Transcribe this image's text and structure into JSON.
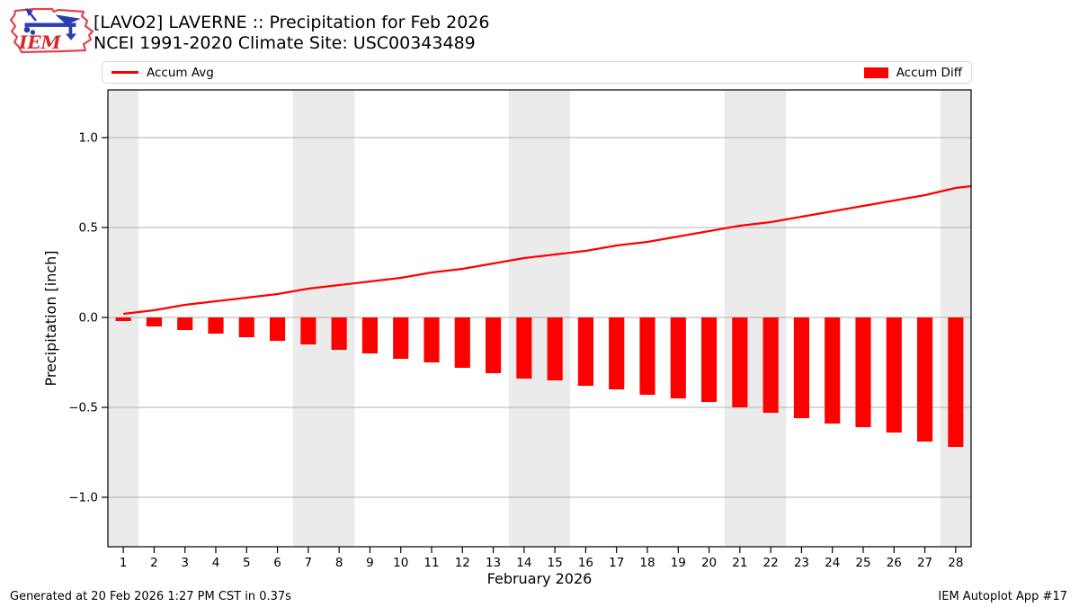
{
  "header": {
    "title_line1": "[LAVO2] LAVERNE :: Precipitation for Feb 2026",
    "title_line2": "NCEI 1991-2020 Climate Site: USC00343489",
    "logo_text": "IEM"
  },
  "legend": {
    "avg_label": "Accum Avg",
    "diff_label": "Accum Diff",
    "series_color": "#ff0000"
  },
  "footer": {
    "left": "Generated at 20 Feb 2026 1:27 PM CST in 0.37s",
    "right": "IEM Autoplot App #17"
  },
  "chart_data": {
    "type": "bar",
    "subtype": "line+bar combo, daily accumulation vs climatology",
    "title": "[LAVO2] LAVERNE :: Precipitation for Feb 2026",
    "subtitle": "NCEI 1991-2020 Climate Site: USC00343489",
    "xlabel": "February 2026",
    "ylabel": "Precipitation [inch]",
    "x": [
      1,
      2,
      3,
      4,
      5,
      6,
      7,
      8,
      9,
      10,
      11,
      12,
      13,
      14,
      15,
      16,
      17,
      18,
      19,
      20,
      21,
      22,
      23,
      24,
      25,
      26,
      27,
      28
    ],
    "series": [
      {
        "name": "Accum Avg",
        "type": "line",
        "color": "#ff0000",
        "values": [
          0.02,
          0.04,
          0.07,
          0.09,
          0.11,
          0.13,
          0.16,
          0.18,
          0.2,
          0.22,
          0.25,
          0.27,
          0.3,
          0.33,
          0.35,
          0.37,
          0.4,
          0.42,
          0.45,
          0.48,
          0.51,
          0.53,
          0.56,
          0.59,
          0.62,
          0.65,
          0.68,
          0.72
        ]
      },
      {
        "name": "Accum Diff",
        "type": "bar",
        "color": "#ff0000",
        "values": [
          -0.02,
          -0.05,
          -0.07,
          -0.09,
          -0.11,
          -0.13,
          -0.15,
          -0.18,
          -0.2,
          -0.23,
          -0.25,
          -0.28,
          -0.31,
          -0.34,
          -0.35,
          -0.38,
          -0.4,
          -0.43,
          -0.45,
          -0.47,
          -0.5,
          -0.53,
          -0.56,
          -0.59,
          -0.61,
          -0.64,
          -0.69,
          -0.72
        ]
      }
    ],
    "line_edge_extension": {
      "x": 28.5,
      "value": 0.73
    },
    "yticks": [
      -1.0,
      -0.5,
      0.0,
      0.5,
      1.0
    ],
    "ytick_labels": [
      "−1.0",
      "−0.5",
      "0.0",
      "0.5",
      "1.0"
    ],
    "ylim": [
      -1.275,
      1.265
    ],
    "xlim": [
      0.5,
      28.5
    ],
    "grid": true,
    "grid_color": "#b0b0b0",
    "weekend_bands": [
      [
        0.5,
        1.5
      ],
      [
        6.5,
        8.5
      ],
      [
        13.5,
        15.5
      ],
      [
        20.5,
        22.5
      ],
      [
        27.5,
        28.5
      ]
    ],
    "band_color": "#ebebeb",
    "legend_position": "top strip spanning plot width; Accum Avg left, Accum Diff right",
    "bar_width_days": 0.5
  }
}
